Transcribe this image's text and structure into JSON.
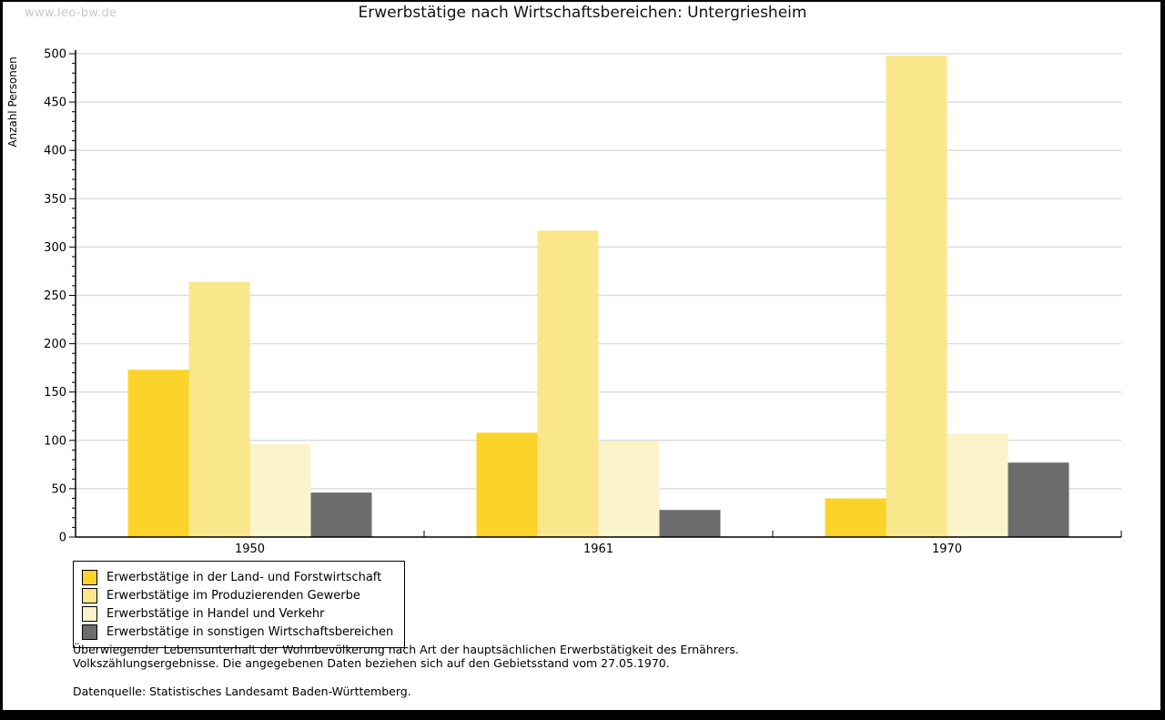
{
  "watermark": "www.leo-bw.de",
  "title": "Erwerbstätige nach Wirtschaftsbereichen: Untergriesheim",
  "chart_data": {
    "type": "bar",
    "title": "Erwerbstätige nach Wirtschaftsbereichen: Untergriesheim",
    "ylabel": "Anzahl Personen",
    "xlabel": "",
    "categories": [
      "1950",
      "1961",
      "1970"
    ],
    "series": [
      {
        "name": "Erwerbstätige in der Land- und Forstwirtschaft",
        "color": "#FBD32B",
        "values": [
          173,
          108,
          40
        ]
      },
      {
        "name": "Erwerbstätige im Produzierenden Gewerbe",
        "color": "#FAE78C",
        "values": [
          264,
          317,
          498
        ]
      },
      {
        "name": "Erwerbstätige in Handel und Verkehr",
        "color": "#FBF3C9",
        "values": [
          96,
          99,
          107
        ]
      },
      {
        "name": "Erwerbstätige in sonstigen Wirtschaftsbereichen",
        "color": "#6C6C6C",
        "values": [
          46,
          28,
          77
        ]
      }
    ],
    "ylim": [
      0,
      500
    ],
    "ytick_step": 50,
    "yminor_step": 10,
    "grid": true,
    "legend_position": "bottom-left",
    "colors": {
      "grid": "#DDDDDD",
      "axis": "#000000"
    }
  },
  "footnotes": {
    "line1": "Überwiegender Lebensunterhalt der Wohnbevölkerung nach Art der hauptsächlichen Erwerbstätigkeit des Ernährers.",
    "line2": "Volkszählungsergebnisse. Die angegebenen Daten beziehen sich auf den Gebietsstand vom 27.05.1970.",
    "source": "Datenquelle: Statistisches Landesamt Baden-Württemberg."
  }
}
